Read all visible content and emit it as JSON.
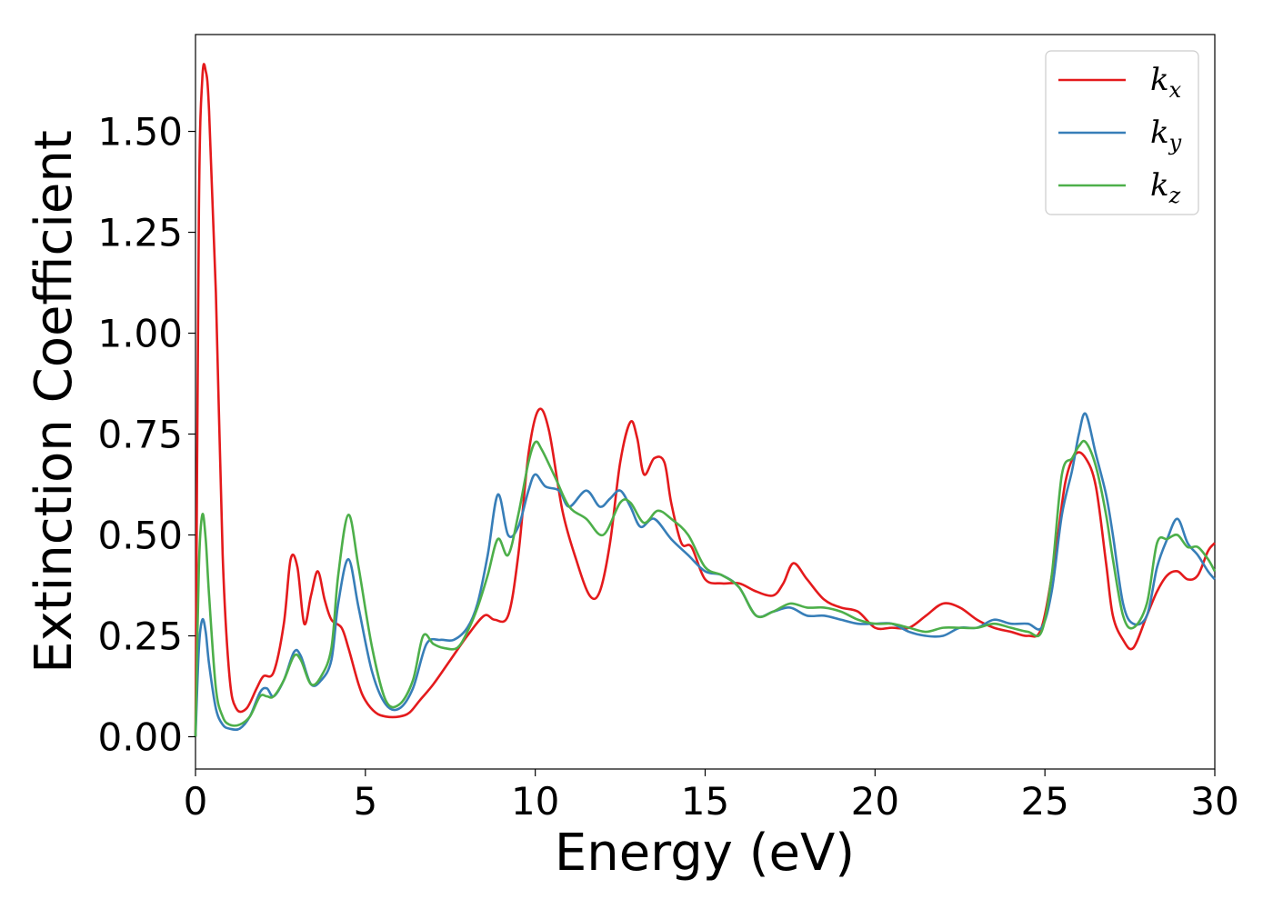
{
  "chart_data": {
    "type": "line",
    "title": "",
    "xlabel": "Energy (eV)",
    "ylabel": "Extinction Coefficient",
    "xlim": [
      0,
      30
    ],
    "ylim": [
      -0.08,
      1.74
    ],
    "xticks": [
      0,
      5,
      10,
      15,
      20,
      25,
      30
    ],
    "xtick_labels": [
      "0",
      "5",
      "10",
      "15",
      "20",
      "25",
      "30"
    ],
    "yticks": [
      0,
      0.25,
      0.5,
      0.75,
      1.0,
      1.25,
      1.5
    ],
    "ytick_labels": [
      "0.00",
      "0.25",
      "0.50",
      "0.75",
      "1.00",
      "1.25",
      "1.50"
    ],
    "grid": false,
    "legend": {
      "placement": "top-right",
      "entries": [
        {
          "base": "k",
          "sub": "x"
        },
        {
          "base": "k",
          "sub": "y"
        },
        {
          "base": "k",
          "sub": "z"
        }
      ]
    },
    "series": [
      {
        "name": "k_x",
        "color": "#e41a1c",
        "x": [
          0,
          0.1,
          0.2,
          0.3,
          0.4,
          0.6,
          0.8,
          1.0,
          1.2,
          1.5,
          1.8,
          2.0,
          2.3,
          2.6,
          2.8,
          3.0,
          3.2,
          3.4,
          3.6,
          3.8,
          4.0,
          4.3,
          4.5,
          4.8,
          5.0,
          5.3,
          5.6,
          6.0,
          6.3,
          6.6,
          7.0,
          7.5,
          8.0,
          8.5,
          8.8,
          9.2,
          9.5,
          9.8,
          10.1,
          10.4,
          10.8,
          11.2,
          11.6,
          11.9,
          12.2,
          12.5,
          12.8,
          13.0,
          13.2,
          13.5,
          13.8,
          14.0,
          14.3,
          14.6,
          15.0,
          15.5,
          16.0,
          16.5,
          17.0,
          17.3,
          17.6,
          18.0,
          18.5,
          19.0,
          19.5,
          20.0,
          20.5,
          21.0,
          21.5,
          22.0,
          22.5,
          23.0,
          23.5,
          24.0,
          24.5,
          24.9,
          25.3,
          25.6,
          25.9,
          26.2,
          26.5,
          26.8,
          27.0,
          27.3,
          27.6,
          28.0,
          28.3,
          28.6,
          28.9,
          29.2,
          29.5,
          29.8,
          30.0
        ],
        "y": [
          0.0,
          1.3,
          1.63,
          1.65,
          1.55,
          1.1,
          0.45,
          0.15,
          0.07,
          0.07,
          0.12,
          0.15,
          0.16,
          0.28,
          0.44,
          0.42,
          0.28,
          0.35,
          0.41,
          0.34,
          0.29,
          0.27,
          0.22,
          0.13,
          0.09,
          0.06,
          0.05,
          0.05,
          0.06,
          0.09,
          0.13,
          0.19,
          0.25,
          0.3,
          0.29,
          0.3,
          0.45,
          0.7,
          0.81,
          0.76,
          0.56,
          0.44,
          0.35,
          0.36,
          0.48,
          0.68,
          0.78,
          0.74,
          0.65,
          0.69,
          0.68,
          0.58,
          0.48,
          0.47,
          0.39,
          0.38,
          0.38,
          0.36,
          0.35,
          0.38,
          0.43,
          0.39,
          0.34,
          0.32,
          0.31,
          0.27,
          0.27,
          0.27,
          0.3,
          0.33,
          0.32,
          0.29,
          0.27,
          0.26,
          0.25,
          0.27,
          0.45,
          0.63,
          0.7,
          0.69,
          0.62,
          0.43,
          0.3,
          0.24,
          0.22,
          0.3,
          0.36,
          0.4,
          0.41,
          0.39,
          0.4,
          0.46,
          0.48
        ]
      },
      {
        "name": "k_y",
        "color": "#377eb8",
        "x": [
          0,
          0.1,
          0.2,
          0.3,
          0.4,
          0.6,
          0.8,
          1.0,
          1.3,
          1.6,
          1.9,
          2.1,
          2.3,
          2.6,
          2.9,
          3.1,
          3.4,
          3.7,
          4.0,
          4.2,
          4.5,
          4.8,
          5.2,
          5.6,
          6.0,
          6.4,
          6.8,
          7.2,
          7.6,
          8.0,
          8.3,
          8.6,
          8.9,
          9.2,
          9.5,
          9.8,
          10.0,
          10.3,
          10.7,
          11.0,
          11.5,
          11.9,
          12.2,
          12.5,
          12.8,
          13.1,
          13.5,
          14.0,
          14.5,
          15.0,
          15.5,
          16.0,
          16.5,
          17.0,
          17.5,
          18.0,
          18.5,
          19.0,
          19.5,
          20.0,
          20.5,
          21.0,
          21.5,
          22.0,
          22.5,
          23.0,
          23.5,
          24.0,
          24.5,
          24.9,
          25.2,
          25.5,
          25.8,
          26.0,
          26.2,
          26.5,
          26.8,
          27.0,
          27.3,
          27.6,
          28.0,
          28.3,
          28.6,
          28.9,
          29.2,
          29.5,
          29.8,
          30.0
        ],
        "y": [
          0.0,
          0.22,
          0.29,
          0.26,
          0.18,
          0.07,
          0.03,
          0.02,
          0.02,
          0.05,
          0.11,
          0.12,
          0.1,
          0.14,
          0.21,
          0.2,
          0.13,
          0.14,
          0.19,
          0.33,
          0.44,
          0.32,
          0.16,
          0.08,
          0.07,
          0.12,
          0.23,
          0.24,
          0.24,
          0.27,
          0.33,
          0.45,
          0.6,
          0.5,
          0.52,
          0.61,
          0.65,
          0.62,
          0.61,
          0.57,
          0.61,
          0.57,
          0.59,
          0.61,
          0.57,
          0.52,
          0.54,
          0.49,
          0.45,
          0.41,
          0.4,
          0.37,
          0.3,
          0.31,
          0.32,
          0.3,
          0.3,
          0.29,
          0.28,
          0.28,
          0.28,
          0.26,
          0.25,
          0.25,
          0.27,
          0.27,
          0.29,
          0.28,
          0.28,
          0.27,
          0.36,
          0.55,
          0.66,
          0.75,
          0.8,
          0.7,
          0.6,
          0.5,
          0.33,
          0.28,
          0.3,
          0.42,
          0.49,
          0.54,
          0.48,
          0.45,
          0.41,
          0.39
        ]
      },
      {
        "name": "k_z",
        "color": "#4daf4a",
        "x": [
          0,
          0.1,
          0.2,
          0.3,
          0.4,
          0.6,
          0.8,
          1.0,
          1.3,
          1.6,
          1.9,
          2.1,
          2.3,
          2.6,
          2.9,
          3.1,
          3.4,
          3.7,
          4.0,
          4.2,
          4.5,
          4.8,
          5.2,
          5.6,
          6.0,
          6.4,
          6.7,
          7.0,
          7.3,
          7.7,
          8.0,
          8.3,
          8.6,
          8.9,
          9.2,
          9.5,
          9.8,
          10.0,
          10.2,
          10.6,
          11.0,
          11.5,
          12.0,
          12.5,
          12.8,
          13.2,
          13.6,
          14.0,
          14.5,
          15.0,
          15.5,
          16.0,
          16.5,
          17.0,
          17.5,
          18.0,
          18.5,
          19.0,
          19.5,
          20.0,
          20.5,
          21.0,
          21.5,
          22.0,
          22.5,
          23.0,
          23.5,
          24.0,
          24.5,
          24.9,
          25.2,
          25.5,
          25.8,
          26.0,
          26.2,
          26.5,
          26.8,
          27.0,
          27.3,
          27.6,
          28.0,
          28.3,
          28.6,
          28.9,
          29.2,
          29.5,
          29.8,
          30.0
        ],
        "y": [
          0.0,
          0.42,
          0.55,
          0.49,
          0.35,
          0.12,
          0.05,
          0.03,
          0.03,
          0.05,
          0.1,
          0.1,
          0.1,
          0.14,
          0.2,
          0.19,
          0.13,
          0.15,
          0.22,
          0.4,
          0.55,
          0.42,
          0.22,
          0.09,
          0.08,
          0.14,
          0.25,
          0.23,
          0.22,
          0.22,
          0.26,
          0.32,
          0.4,
          0.49,
          0.45,
          0.55,
          0.68,
          0.73,
          0.71,
          0.64,
          0.57,
          0.54,
          0.5,
          0.58,
          0.58,
          0.53,
          0.56,
          0.54,
          0.5,
          0.42,
          0.4,
          0.37,
          0.3,
          0.31,
          0.33,
          0.32,
          0.32,
          0.31,
          0.29,
          0.28,
          0.28,
          0.27,
          0.26,
          0.27,
          0.27,
          0.27,
          0.28,
          0.27,
          0.26,
          0.26,
          0.4,
          0.65,
          0.69,
          0.72,
          0.73,
          0.67,
          0.55,
          0.44,
          0.3,
          0.27,
          0.33,
          0.48,
          0.49,
          0.5,
          0.47,
          0.47,
          0.44,
          0.41
        ]
      }
    ]
  }
}
